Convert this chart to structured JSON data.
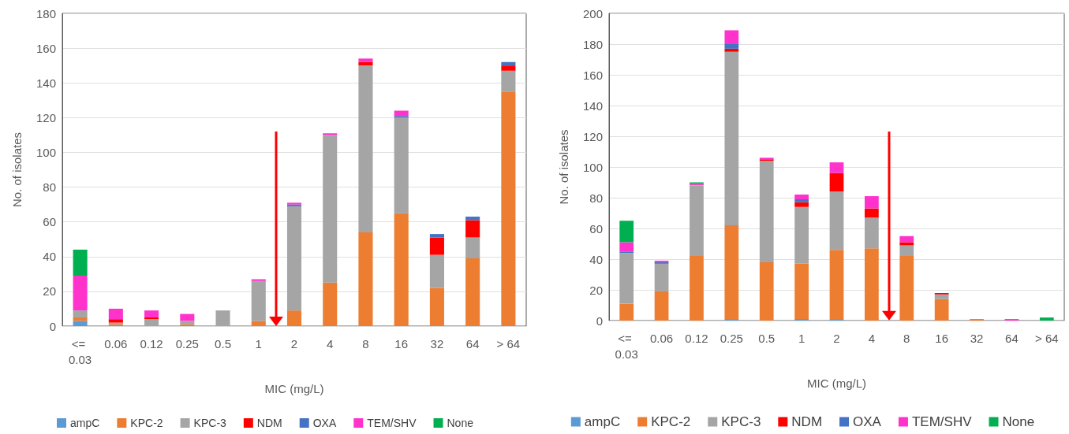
{
  "chart_data": [
    {
      "type": "bar",
      "stacked": true,
      "xlabel": "MIC (mg/L)",
      "ylabel": "No. of isolates",
      "categories": [
        "<= 0.03",
        "0.06",
        "0.12",
        "0.25",
        "0.5",
        "1",
        "2",
        "4",
        "8",
        "16",
        "32",
        "64",
        "> 64"
      ],
      "series": [
        {
          "name": "ampC",
          "color": "#5b9bd5",
          "values": [
            3,
            0,
            0,
            0,
            0,
            0,
            0,
            0,
            0,
            0,
            0,
            0,
            0
          ]
        },
        {
          "name": "KPC-2",
          "color": "#ed7d31",
          "values": [
            2,
            1,
            0,
            1,
            0,
            3,
            9,
            25,
            54,
            65,
            22,
            39,
            135
          ]
        },
        {
          "name": "KPC-3",
          "color": "#a5a5a5",
          "values": [
            4,
            1,
            4,
            2,
            9,
            23,
            60,
            85,
            96,
            55,
            19,
            12,
            12
          ]
        },
        {
          "name": "NDM",
          "color": "#ff0000",
          "values": [
            0,
            2,
            1,
            0,
            0,
            0,
            0,
            0,
            2,
            0,
            10,
            10,
            3
          ]
        },
        {
          "name": "OXA",
          "color": "#4472c4",
          "values": [
            0,
            0,
            0,
            0,
            0,
            0,
            1,
            0,
            0,
            1,
            2,
            2,
            2
          ]
        },
        {
          "name": "TEM/SHV",
          "color": "#ff33cc",
          "values": [
            20,
            6,
            4,
            4,
            0,
            1,
            1,
            1,
            2,
            3,
            0,
            0,
            0
          ]
        },
        {
          "name": "None",
          "color": "#00b050",
          "values": [
            15,
            0,
            0,
            0,
            0,
            0,
            0,
            0,
            0,
            0,
            0,
            0,
            0
          ]
        }
      ],
      "ylim": [
        0,
        180
      ],
      "yticks": [
        0,
        20,
        40,
        60,
        80,
        100,
        120,
        140,
        160,
        180
      ],
      "grid": "y",
      "legend": "bottom"
    },
    {
      "type": "bar",
      "stacked": true,
      "xlabel": "MIC (mg/L)",
      "ylabel": "No. of isolates",
      "categories": [
        "<= 0.03",
        "0.06",
        "0.12",
        "0.25",
        "0.5",
        "1",
        "2",
        "4",
        "8",
        "16",
        "32",
        "64",
        "> 64"
      ],
      "series": [
        {
          "name": "ampC",
          "color": "#5b9bd5",
          "values": [
            0,
            0,
            0,
            1,
            0,
            1,
            1,
            0,
            0,
            0,
            0,
            0,
            0
          ]
        },
        {
          "name": "KPC-2",
          "color": "#ed7d31",
          "values": [
            11,
            19,
            42,
            61,
            38,
            36,
            45,
            47,
            42,
            14,
            1,
            0,
            0
          ]
        },
        {
          "name": "KPC-3",
          "color": "#a5a5a5",
          "values": [
            33,
            18,
            46,
            113,
            66,
            37,
            38,
            20,
            7,
            3,
            0,
            0,
            0
          ]
        },
        {
          "name": "NDM",
          "color": "#ff0000",
          "values": [
            0,
            0,
            0,
            2,
            1,
            3,
            12,
            6,
            2,
            1,
            0,
            0,
            0
          ]
        },
        {
          "name": "OXA",
          "color": "#4472c4",
          "values": [
            1,
            1,
            0,
            3,
            0,
            2,
            0,
            0,
            0,
            0,
            0,
            0,
            0
          ]
        },
        {
          "name": "TEM/SHV",
          "color": "#ff33cc",
          "values": [
            6,
            1,
            1,
            9,
            1,
            3,
            7,
            8,
            4,
            0,
            0,
            1,
            0
          ]
        },
        {
          "name": "None",
          "color": "#00b050",
          "values": [
            14,
            0,
            1,
            0,
            0,
            0,
            0,
            0,
            0,
            0,
            0,
            0,
            2
          ]
        }
      ],
      "ylim": [
        0,
        200
      ],
      "yticks": [
        0,
        20,
        40,
        60,
        80,
        100,
        120,
        140,
        160,
        180,
        200
      ],
      "grid": "y",
      "legend": "bottom"
    }
  ]
}
